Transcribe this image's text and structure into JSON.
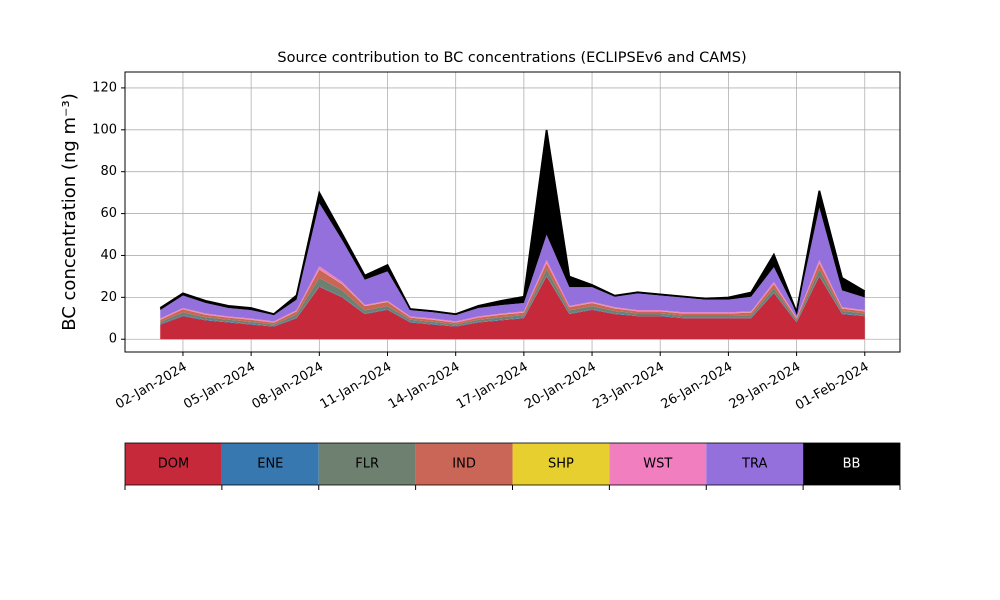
{
  "chart_data": {
    "type": "stacked_area",
    "title": "Source contribution to BC concentrations (ECLIPSEv6 and CAMS)",
    "y_label": "BC concentration (ng m⁻³)",
    "x": [
      "2024-01-01",
      "2024-01-02",
      "2024-01-03",
      "2024-01-04",
      "2024-01-05",
      "2024-01-06",
      "2024-01-07",
      "2024-01-08",
      "2024-01-09",
      "2024-01-10",
      "2024-01-11",
      "2024-01-12",
      "2024-01-13",
      "2024-01-14",
      "2024-01-15",
      "2024-01-16",
      "2024-01-17",
      "2024-01-18",
      "2024-01-19",
      "2024-01-20",
      "2024-01-21",
      "2024-01-22",
      "2024-01-23",
      "2024-01-24",
      "2024-01-25",
      "2024-01-26",
      "2024-01-27",
      "2024-01-28",
      "2024-01-29",
      "2024-01-30",
      "2024-01-31",
      "2024-02-01"
    ],
    "series": [
      {
        "name": "DOM",
        "color": "#c62a3a",
        "values": [
          7,
          11,
          9,
          8,
          7,
          6,
          10,
          25,
          20,
          12,
          14,
          8,
          7,
          6,
          8,
          9,
          10,
          30,
          12,
          14,
          12,
          11,
          11,
          10,
          10,
          10,
          10,
          22,
          8,
          30,
          12,
          11
        ]
      },
      {
        "name": "ENE",
        "color": "#3778b0",
        "values": [
          0.3,
          0.3,
          0.3,
          0.3,
          0.3,
          0.3,
          0.3,
          0.3,
          0.3,
          0.3,
          0.3,
          0.3,
          0.3,
          0.3,
          0.3,
          0.3,
          0.3,
          0.3,
          0.3,
          0.3,
          0.3,
          0.3,
          0.3,
          0.3,
          0.3,
          0.3,
          0.3,
          0.3,
          0.3,
          0.3,
          0.3,
          0.3
        ]
      },
      {
        "name": "FLR",
        "color": "#6e8170",
        "values": [
          1,
          1.5,
          1.2,
          1,
          1,
          0.8,
          1.5,
          4,
          3,
          1.5,
          1.5,
          1,
          1,
          0.8,
          1,
          1.2,
          1.2,
          3,
          1.5,
          1.5,
          1.2,
          1,
          1,
          1,
          1,
          1,
          1.2,
          2,
          0.8,
          3,
          1.2,
          1
        ]
      },
      {
        "name": "IND",
        "color": "#ca6658",
        "values": [
          1,
          1.5,
          1.2,
          1,
          1,
          0.8,
          1.5,
          4,
          3,
          2,
          2,
          1,
          1,
          0.8,
          1,
          1.2,
          1.2,
          3,
          1.5,
          1.5,
          1.2,
          1,
          1,
          1,
          1,
          1,
          1.2,
          2,
          0.8,
          3,
          1.2,
          1
        ]
      },
      {
        "name": "SHP",
        "color": "#e6cf2f",
        "values": [
          0.1,
          0.1,
          0.1,
          0.1,
          0.1,
          0.1,
          0.1,
          0.1,
          0.1,
          0.1,
          0.1,
          0.1,
          0.1,
          0.1,
          0.1,
          0.1,
          0.1,
          0.1,
          0.1,
          0.1,
          0.1,
          0.1,
          0.1,
          0.1,
          0.1,
          0.1,
          0.1,
          0.1,
          0.1,
          0.1,
          0.1,
          0.1
        ]
      },
      {
        "name": "WST",
        "color": "#f17fbf",
        "values": [
          0.5,
          0.5,
          0.5,
          0.5,
          0.5,
          0.5,
          0.5,
          1.5,
          1,
          0.5,
          0.5,
          0.5,
          0.5,
          0.5,
          0.5,
          0.5,
          0.5,
          1.5,
          0.5,
          0.5,
          0.5,
          0.5,
          0.5,
          0.5,
          0.5,
          0.5,
          0.5,
          1,
          0.5,
          1.5,
          0.5,
          0.5
        ]
      },
      {
        "name": "TRA",
        "color": "#9470dd",
        "values": [
          4,
          6,
          5,
          4,
          4,
          3,
          5,
          30,
          20,
          12,
          14,
          3,
          3,
          3,
          4,
          4,
          4,
          12,
          9,
          7,
          5,
          8,
          7,
          7,
          6,
          6,
          7,
          7,
          2,
          25,
          8,
          6
        ]
      },
      {
        "name": "BB",
        "color": "#000000",
        "values": [
          1,
          1,
          1,
          1,
          1,
          0.5,
          2,
          5,
          3,
          2,
          3,
          0.5,
          0.5,
          0.5,
          1,
          2,
          3,
          50,
          5,
          1,
          0.5,
          0.5,
          0.5,
          0.5,
          0.5,
          1,
          2,
          6,
          0.5,
          8,
          6,
          3
        ]
      }
    ],
    "xlim": [
      "2023-12-30T10:48",
      "2024-02-02T13:12"
    ],
    "xticks": [
      {
        "value": "2024-01-02",
        "label": "02-Jan-2024"
      },
      {
        "value": "2024-01-05",
        "label": "05-Jan-2024"
      },
      {
        "value": "2024-01-08",
        "label": "08-Jan-2024"
      },
      {
        "value": "2024-01-11",
        "label": "11-Jan-2024"
      },
      {
        "value": "2024-01-14",
        "label": "14-Jan-2024"
      },
      {
        "value": "2024-01-17",
        "label": "17-Jan-2024"
      },
      {
        "value": "2024-01-20",
        "label": "20-Jan-2024"
      },
      {
        "value": "2024-01-23",
        "label": "23-Jan-2024"
      },
      {
        "value": "2024-01-26",
        "label": "26-Jan-2024"
      },
      {
        "value": "2024-01-29",
        "label": "29-Jan-2024"
      },
      {
        "value": "2024-02-01",
        "label": "01-Feb-2024"
      }
    ],
    "ylim": [
      -6.1,
      127.6
    ],
    "yticks": [
      0,
      20,
      40,
      60,
      80,
      100,
      120
    ],
    "grid": true
  }
}
